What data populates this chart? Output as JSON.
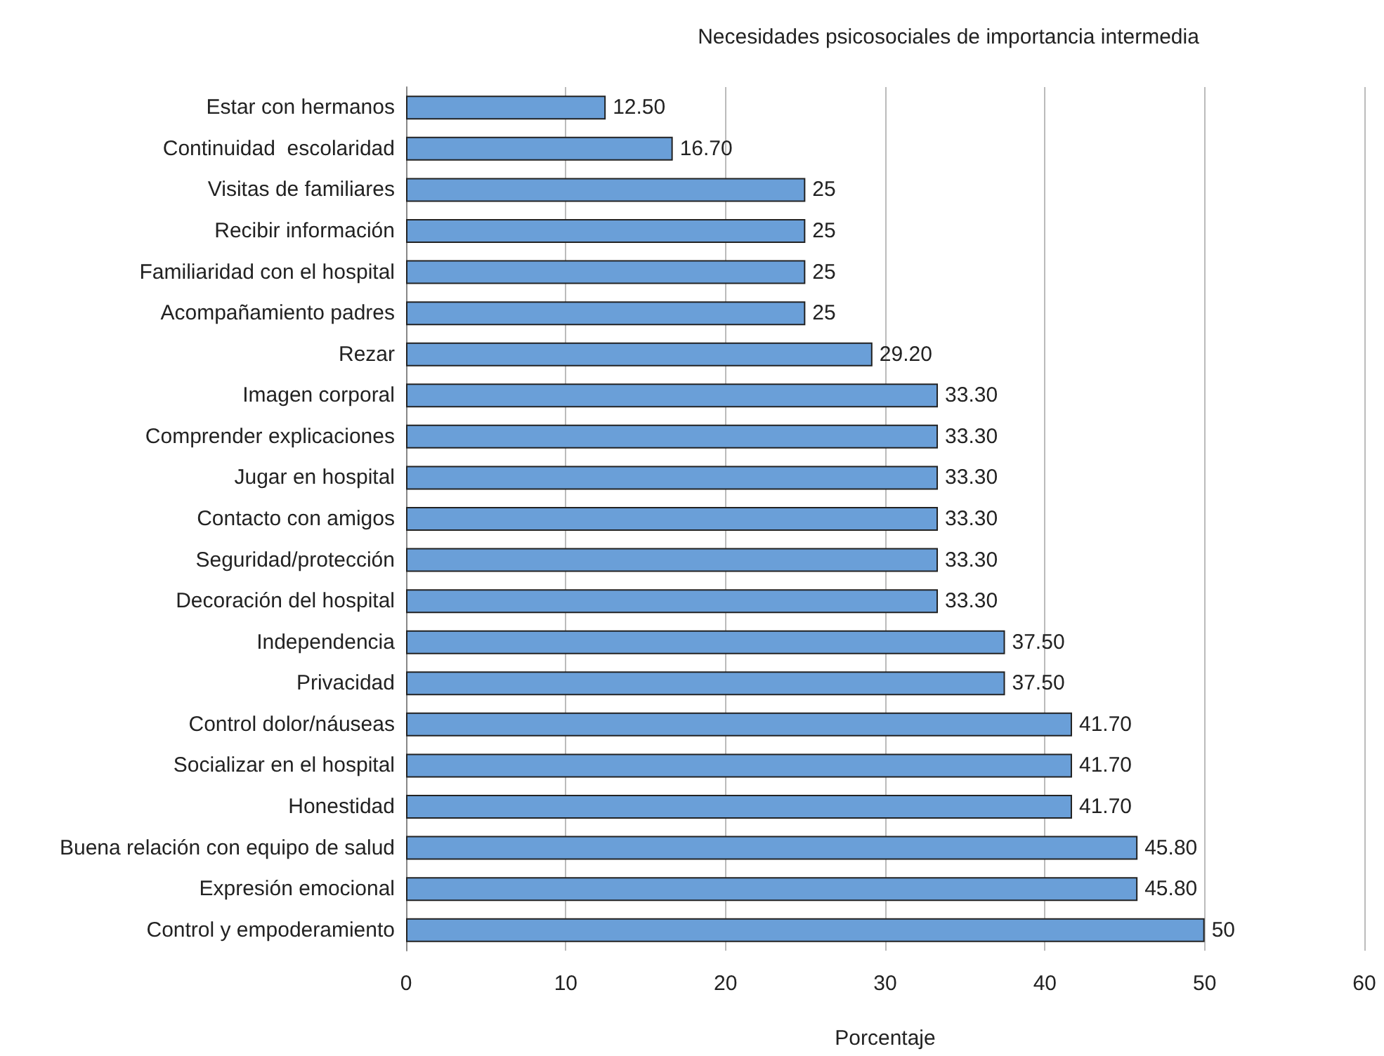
{
  "chart_data": {
    "type": "bar",
    "orientation": "horizontal",
    "title": "Necesidades psicosociales de importancia intermedia",
    "xlabel": "Porcentaje",
    "categories": [
      "Estar con hermanos",
      "Continuidad  escolaridad",
      "Visitas de familiares",
      "Recibir información",
      "Familiaridad con el hospital",
      "Acompañamiento padres",
      "Rezar",
      "Imagen corporal",
      "Comprender explicaciones",
      "Jugar en hospital",
      "Contacto con amigos",
      "Seguridad/protección",
      "Decoración del hospital",
      "Independencia",
      "Privacidad",
      "Control dolor/náuseas",
      "Socializar en el hospital",
      "Honestidad",
      "Buena relación con equipo de salud",
      "Expresión emocional",
      "Control y empoderamiento"
    ],
    "values": [
      12.5,
      16.7,
      25,
      25,
      25,
      25,
      29.2,
      33.3,
      33.3,
      33.3,
      33.3,
      33.3,
      33.3,
      37.5,
      37.5,
      41.7,
      41.7,
      41.7,
      45.8,
      45.8,
      50
    ],
    "value_labels": [
      "12.50",
      "16.70",
      "25",
      "25",
      "25",
      "25",
      "29.20",
      "33.30",
      "33.30",
      "33.30",
      "33.30",
      "33.30",
      "33.30",
      "37.50",
      "37.50",
      "41.70",
      "41.70",
      "41.70",
      "45.80",
      "45.80",
      "50"
    ],
    "color": "#6a9fd8",
    "xlim": [
      0,
      60
    ],
    "xticks": [
      0,
      10,
      20,
      30,
      40,
      50,
      60
    ],
    "grid": "x"
  }
}
